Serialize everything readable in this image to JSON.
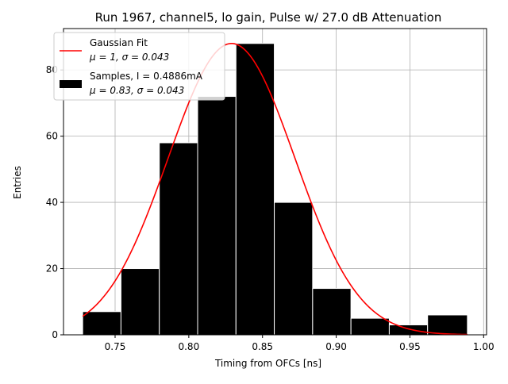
{
  "chart_data": {
    "type": "bar",
    "title": "Run 1967, channel5, lo gain, Pulse w/ 27.0 dB Attenuation",
    "xlabel": "Timing from OFCs [ns]",
    "ylabel": "Entries",
    "xlim": [
      0.715,
      1.002
    ],
    "ylim": [
      0,
      92.5
    ],
    "grid": true,
    "legend_position": "top-left",
    "x_ticks": [
      "0.75",
      "0.80",
      "0.85",
      "0.90",
      "0.95",
      "1.00"
    ],
    "x_tick_values": [
      0.75,
      0.8,
      0.85,
      0.9,
      0.95,
      1.0
    ],
    "y_ticks": [
      "0",
      "20",
      "40",
      "60",
      "80"
    ],
    "y_tick_values": [
      0,
      20,
      40,
      60,
      80
    ],
    "histogram": {
      "bin_edges": [
        0.728,
        0.754,
        0.78,
        0.806,
        0.832,
        0.858,
        0.884,
        0.91,
        0.936,
        0.962,
        0.989
      ],
      "counts": [
        7,
        20,
        58,
        72,
        88,
        40,
        14,
        5,
        3,
        6
      ],
      "color": "#000000",
      "edge_color": "#ffffff"
    },
    "fit": {
      "amplitude": 88,
      "mean": 0.829,
      "sigma": 0.043,
      "x_range": [
        0.728,
        0.989
      ],
      "color": "#ff0000"
    },
    "legend": [
      {
        "kind": "line",
        "color": "#ff0000",
        "line1": "Gaussian Fit",
        "line2_mu": "μ = 1, ",
        "line2_sigma": "σ = 0.043"
      },
      {
        "kind": "patch",
        "color": "#000000",
        "line1": "Samples, I = 0.4886mA",
        "line2_mu": "μ = 0.83, ",
        "line2_sigma": "σ = 0.043"
      }
    ]
  }
}
